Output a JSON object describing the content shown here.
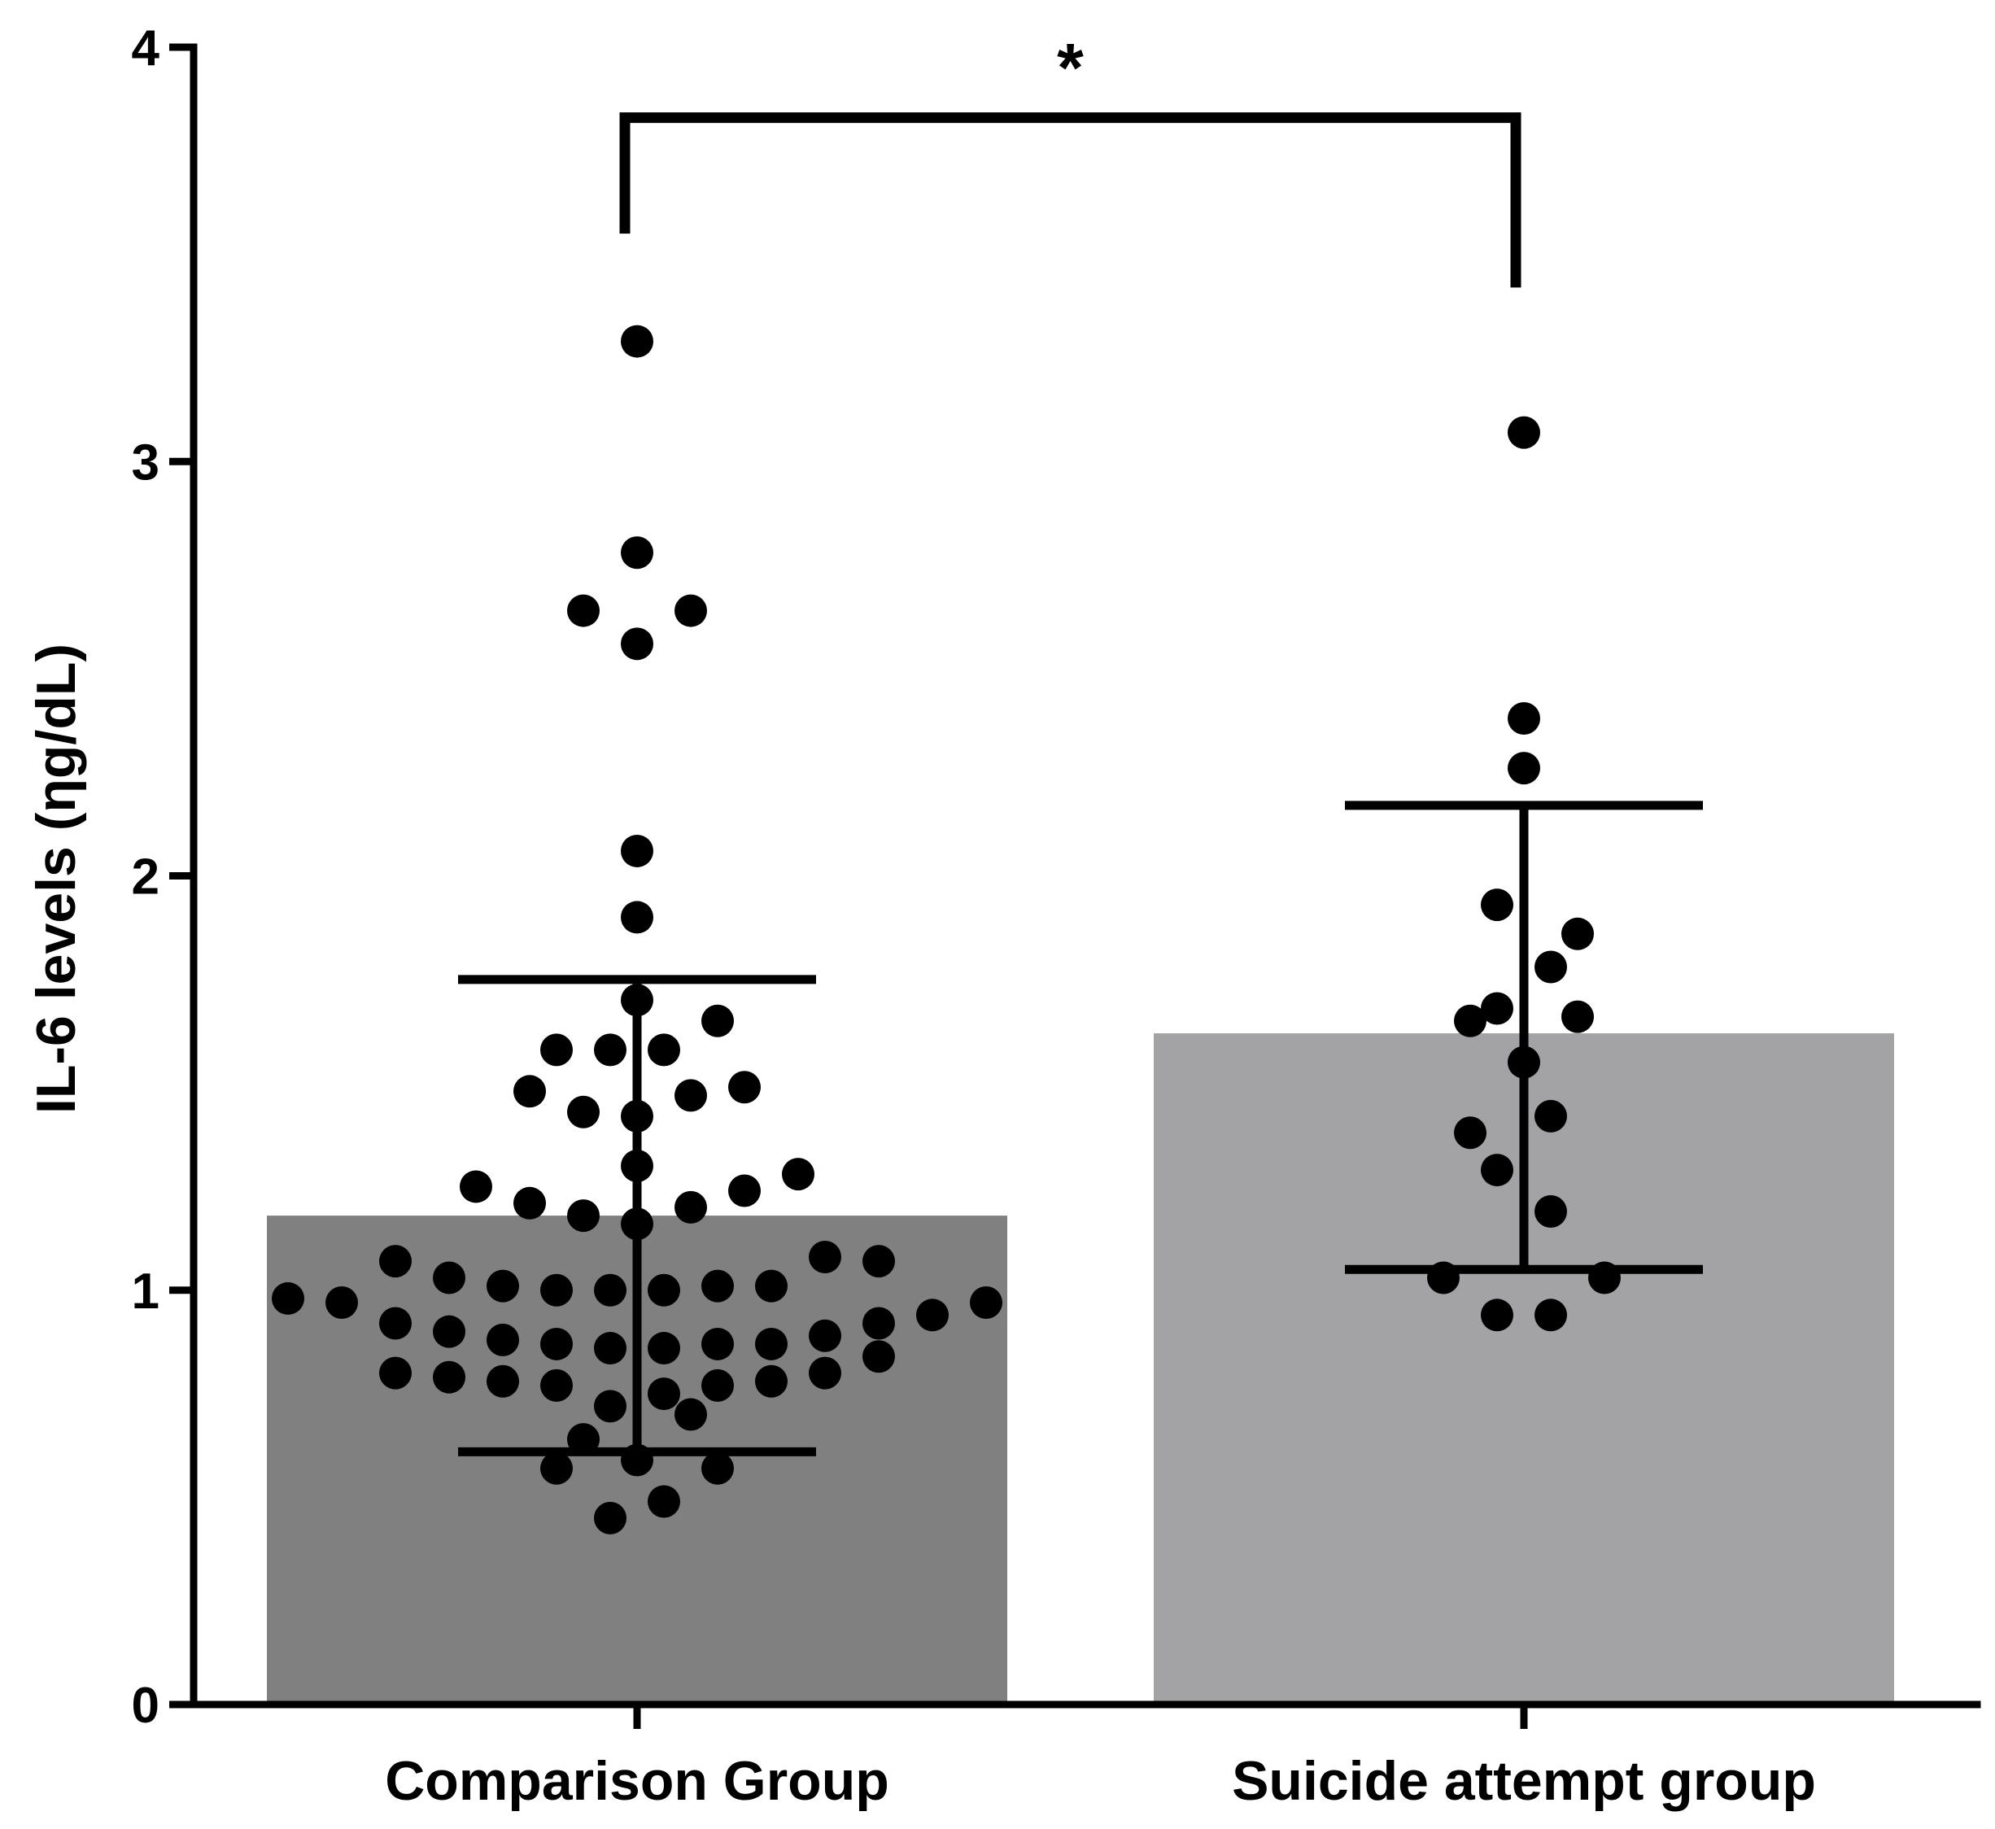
{
  "chart_data": {
    "type": "bar",
    "title": "",
    "xlabel": "",
    "ylabel": "IL-6 levels (ηg/dL)",
    "ylim": [
      0,
      4
    ],
    "yticks": [
      {
        "value": 0,
        "label": "0"
      },
      {
        "value": 1,
        "label": "1"
      },
      {
        "value": 2,
        "label": "2"
      },
      {
        "value": 3,
        "label": "3"
      },
      {
        "value": 4,
        "label": "4"
      }
    ],
    "categories": [
      "Comparison Group",
      "Suicide attempt group"
    ],
    "values": [
      1.18,
      1.62
    ],
    "bar_colors": [
      "#808080",
      "#a3a3a6"
    ],
    "error_bars": [
      {
        "lower": 0.61,
        "upper": 1.75
      },
      {
        "lower": 1.05,
        "upper": 2.17
      }
    ],
    "points": [
      [
        {
          "dx": 0,
          "y": 3.29
        },
        {
          "dx": 0,
          "y": 2.78
        },
        {
          "dx": -0.12,
          "y": 2.64
        },
        {
          "dx": 0.12,
          "y": 2.64
        },
        {
          "dx": 0,
          "y": 2.56
        },
        {
          "dx": 0,
          "y": 2.06
        },
        {
          "dx": 0,
          "y": 1.9
        },
        {
          "dx": 0,
          "y": 1.7
        },
        {
          "dx": 0.18,
          "y": 1.65
        },
        {
          "dx": -0.18,
          "y": 1.58
        },
        {
          "dx": -0.06,
          "y": 1.58
        },
        {
          "dx": 0.06,
          "y": 1.58
        },
        {
          "dx": -0.24,
          "y": 1.48
        },
        {
          "dx": 0.24,
          "y": 1.49
        },
        {
          "dx": 0.12,
          "y": 1.47
        },
        {
          "dx": -0.12,
          "y": 1.43
        },
        {
          "dx": 0,
          "y": 1.42
        },
        {
          "dx": 0,
          "y": 1.3
        },
        {
          "dx": 0.36,
          "y": 1.28
        },
        {
          "dx": -0.36,
          "y": 1.25
        },
        {
          "dx": 0.24,
          "y": 1.24
        },
        {
          "dx": -0.24,
          "y": 1.21
        },
        {
          "dx": 0.12,
          "y": 1.2
        },
        {
          "dx": -0.12,
          "y": 1.18
        },
        {
          "dx": 0,
          "y": 1.16
        },
        {
          "dx": -0.54,
          "y": 1.07
        },
        {
          "dx": 0.42,
          "y": 1.08
        },
        {
          "dx": 0.54,
          "y": 1.07
        },
        {
          "dx": -0.42,
          "y": 1.03
        },
        {
          "dx": -0.3,
          "y": 1.01
        },
        {
          "dx": 0.18,
          "y": 1.01
        },
        {
          "dx": 0.3,
          "y": 1.01
        },
        {
          "dx": -0.18,
          "y": 1.0
        },
        {
          "dx": -0.06,
          "y": 1.0
        },
        {
          "dx": 0.06,
          "y": 1.0
        },
        {
          "dx": -0.78,
          "y": 0.98
        },
        {
          "dx": -0.66,
          "y": 0.97
        },
        {
          "dx": 0.78,
          "y": 0.97
        },
        {
          "dx": 0.66,
          "y": 0.94
        },
        {
          "dx": -0.54,
          "y": 0.92
        },
        {
          "dx": 0.54,
          "y": 0.92
        },
        {
          "dx": -0.42,
          "y": 0.9
        },
        {
          "dx": 0.42,
          "y": 0.89
        },
        {
          "dx": -0.3,
          "y": 0.88
        },
        {
          "dx": -0.18,
          "y": 0.87
        },
        {
          "dx": 0.18,
          "y": 0.87
        },
        {
          "dx": 0.3,
          "y": 0.87
        },
        {
          "dx": -0.06,
          "y": 0.86
        },
        {
          "dx": 0.06,
          "y": 0.86
        },
        {
          "dx": 0.54,
          "y": 0.84
        },
        {
          "dx": -0.54,
          "y": 0.8
        },
        {
          "dx": -0.42,
          "y": 0.79
        },
        {
          "dx": 0.42,
          "y": 0.8
        },
        {
          "dx": -0.3,
          "y": 0.78
        },
        {
          "dx": 0.3,
          "y": 0.78
        },
        {
          "dx": -0.18,
          "y": 0.77
        },
        {
          "dx": 0.18,
          "y": 0.77
        },
        {
          "dx": 0.06,
          "y": 0.75
        },
        {
          "dx": -0.06,
          "y": 0.72
        },
        {
          "dx": 0.12,
          "y": 0.7
        },
        {
          "dx": -0.12,
          "y": 0.64
        },
        {
          "dx": 0,
          "y": 0.59
        },
        {
          "dx": -0.18,
          "y": 0.57
        },
        {
          "dx": 0.18,
          "y": 0.57
        },
        {
          "dx": 0.06,
          "y": 0.49
        },
        {
          "dx": -0.06,
          "y": 0.45
        }
      ],
      [
        {
          "dx": 0,
          "y": 3.07
        },
        {
          "dx": 0,
          "y": 2.38
        },
        {
          "dx": 0,
          "y": 2.26
        },
        {
          "dx": -0.06,
          "y": 1.93
        },
        {
          "dx": 0.12,
          "y": 1.86
        },
        {
          "dx": 0.06,
          "y": 1.78
        },
        {
          "dx": -0.06,
          "y": 1.68
        },
        {
          "dx": -0.12,
          "y": 1.65
        },
        {
          "dx": 0.12,
          "y": 1.66
        },
        {
          "dx": 0,
          "y": 1.55
        },
        {
          "dx": 0.06,
          "y": 1.42
        },
        {
          "dx": -0.12,
          "y": 1.38
        },
        {
          "dx": -0.06,
          "y": 1.29
        },
        {
          "dx": 0.06,
          "y": 1.19
        },
        {
          "dx": -0.18,
          "y": 1.03
        },
        {
          "dx": 0.18,
          "y": 1.03
        },
        {
          "dx": -0.06,
          "y": 0.94
        },
        {
          "dx": 0.06,
          "y": 0.94
        }
      ]
    ],
    "significance": {
      "from": 0,
      "to": 1,
      "label": "*",
      "y": 3.83,
      "left_end": 3.55,
      "right_end": 3.42
    }
  }
}
